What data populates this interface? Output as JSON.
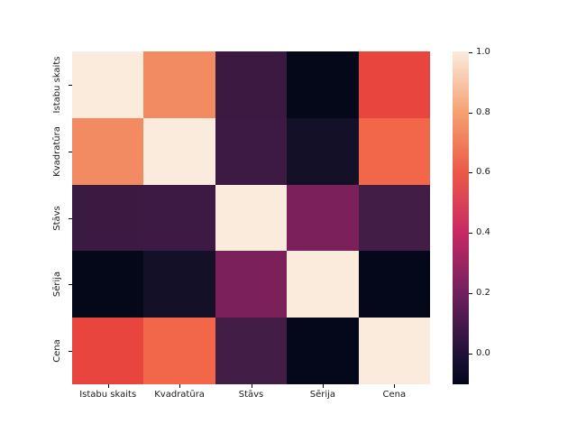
{
  "figure": {
    "background": "#ffffff",
    "text_color": "#1a1a1a"
  },
  "chart_data": {
    "type": "heatmap",
    "title": "",
    "colormap": "rocket",
    "categories": [
      "Istabu skaits",
      "Kvadratūra",
      "Stāvs",
      "Sērija",
      "Cena"
    ],
    "matrix": [
      [
        1.0,
        0.72,
        0.09,
        -0.1,
        0.55
      ],
      [
        0.72,
        1.0,
        0.1,
        -0.03,
        0.64
      ],
      [
        0.09,
        0.1,
        1.0,
        0.22,
        0.11
      ],
      [
        -0.1,
        -0.03,
        0.22,
        1.0,
        -0.09
      ],
      [
        0.55,
        0.64,
        0.11,
        -0.09,
        1.0
      ]
    ],
    "cell_colors": [
      [
        "#FAEBDD",
        "#F28B61",
        "#3A1A40",
        "#050819",
        "#E9453F"
      ],
      [
        "#F28B61",
        "#FAEBDD",
        "#3D1A44",
        "#141028",
        "#F26749"
      ],
      [
        "#3A1A40",
        "#3D1A44",
        "#FAEBDD",
        "#7C2059",
        "#421D46"
      ],
      [
        "#050819",
        "#141028",
        "#7C2059",
        "#FAEBDD",
        "#05081A"
      ],
      [
        "#E9453F",
        "#F26749",
        "#421D46",
        "#05081A",
        "#FAEBDD"
      ]
    ],
    "axis_tick_centers_pct": [
      10,
      30,
      50,
      70,
      90
    ],
    "vmin": -0.1,
    "vmax": 1.0,
    "colorbar": {
      "ticks": [
        {
          "label": "1.0",
          "pos": 0.3
        },
        {
          "label": "0.8",
          "pos": 18.3
        },
        {
          "label": "0.6",
          "pos": 36.4
        },
        {
          "label": "0.4",
          "pos": 54.5
        },
        {
          "label": "0.2",
          "pos": 72.6
        },
        {
          "label": "0.0",
          "pos": 90.7
        }
      ],
      "gradient": [
        {
          "color": "#FAEBDD",
          "pos": 0
        },
        {
          "color": "#F5A171",
          "pos": 18.3
        },
        {
          "color": "#EA5A48",
          "pos": 36.4
        },
        {
          "color": "#C62A63",
          "pos": 54.5
        },
        {
          "color": "#70205E",
          "pos": 72.6
        },
        {
          "color": "#1F1239",
          "pos": 90.7
        },
        {
          "color": "#03051A",
          "pos": 100
        }
      ]
    }
  }
}
